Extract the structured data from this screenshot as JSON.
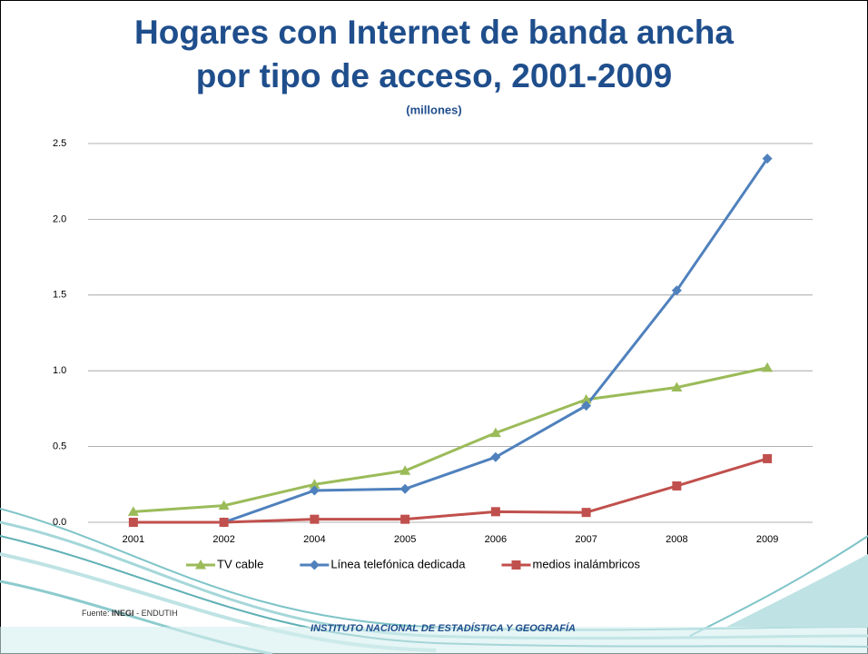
{
  "chart_data": {
    "type": "line",
    "title": [
      "Hogares con Internet de banda ancha",
      "por tipo de acceso, 2001-2009"
    ],
    "subtitle": "(millones)",
    "categories": [
      "2001",
      "2002",
      "2004",
      "2005",
      "2006",
      "2007",
      "2008",
      "2009"
    ],
    "series": [
      {
        "name": "TV cable",
        "color": "#9bbb59",
        "marker": "triangle",
        "values": [
          0.07,
          0.11,
          0.25,
          0.34,
          0.59,
          0.81,
          0.89,
          1.02
        ]
      },
      {
        "name": "Línea telefónica dedicada",
        "color": "#4f81bd",
        "marker": "diamond",
        "values": [
          null,
          0.0,
          0.21,
          0.22,
          0.43,
          0.77,
          1.53,
          2.4
        ]
      },
      {
        "name": "medios inalámbricos",
        "color": "#c0504d",
        "marker": "square",
        "values": [
          0.0,
          0.0,
          0.02,
          0.02,
          0.07,
          0.065,
          0.24,
          0.42
        ]
      }
    ],
    "ylim": [
      0,
      2.5
    ],
    "yticks": [
      {
        "value": 0,
        "label": "0.0"
      },
      0.5,
      {
        "value": 1,
        "label": "1.0"
      },
      1.5,
      {
        "value": 2,
        "label": "2.0"
      },
      2.5
    ],
    "grid": true,
    "legend": "bottom",
    "source": {
      "prefix": "Fuente:",
      "org": "INEGI",
      "rest": "- ENDUTIH"
    },
    "footer": "INSTITUTO NACIONAL DE ESTADÍSTICA Y GEOGRAFÍA"
  }
}
